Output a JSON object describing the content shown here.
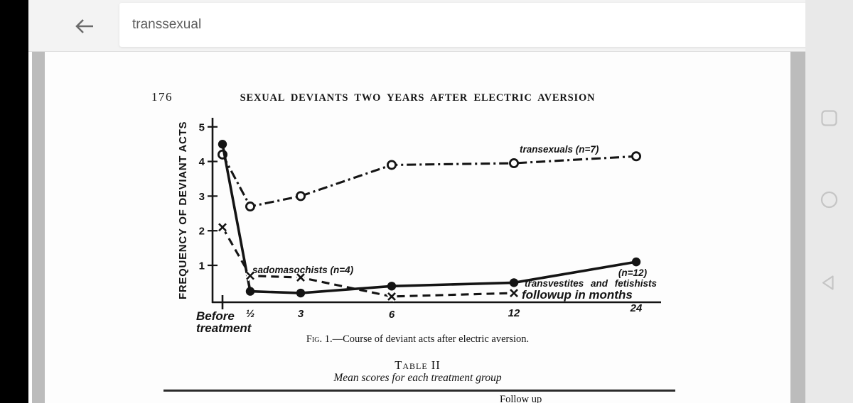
{
  "app_bar": {
    "search_query": "transsexual",
    "back_icon": "arrow-left"
  },
  "android_nav": {
    "recents_icon": "square-outline",
    "home_icon": "circle-outline",
    "back_icon": "triangle-left-outline"
  },
  "page": {
    "page_number": "176",
    "running_head": "SEXUAL DEVIANTS TWO YEARS AFTER ELECTRIC AVERSION",
    "caption_prefix": "Fig. 1.",
    "caption_rest": "—Course of deviant acts after electric aversion.",
    "table_title": "Table II",
    "table_subtitle": "Mean scores for each treatment group",
    "next_section_partial": "Follow up"
  },
  "chart_data": {
    "type": "line",
    "title": "",
    "ylabel": "FREQUENCY OF DEVIANT ACTS",
    "xlabel_inline": "followup in months",
    "x_tick_labels": [
      "Before treatment",
      "½",
      "3",
      "6",
      "12",
      "24"
    ],
    "y_ticks": [
      5,
      4,
      3,
      2,
      1
    ],
    "ylim": [
      0,
      5.3
    ],
    "grid": false,
    "series": [
      {
        "name": "transexuals",
        "label": "transexuals (n=7)",
        "line": "dash-dot",
        "marker": "open-circle",
        "values": [
          4.2,
          2.7,
          3.0,
          3.9,
          3.95,
          4.15
        ]
      },
      {
        "name": "transvestites-fetishists",
        "label": "transvestites and fetishists",
        "label_n": "(n=12)",
        "line": "solid",
        "marker": "filled-circle",
        "values": [
          4.5,
          0.25,
          0.2,
          0.4,
          0.5,
          1.1
        ]
      },
      {
        "name": "sadomasochists",
        "label": "sadomasochists (n=4)",
        "line": "dashed",
        "marker": "x",
        "values": [
          2.1,
          0.7,
          0.65,
          0.1,
          0.2,
          null
        ]
      }
    ]
  }
}
